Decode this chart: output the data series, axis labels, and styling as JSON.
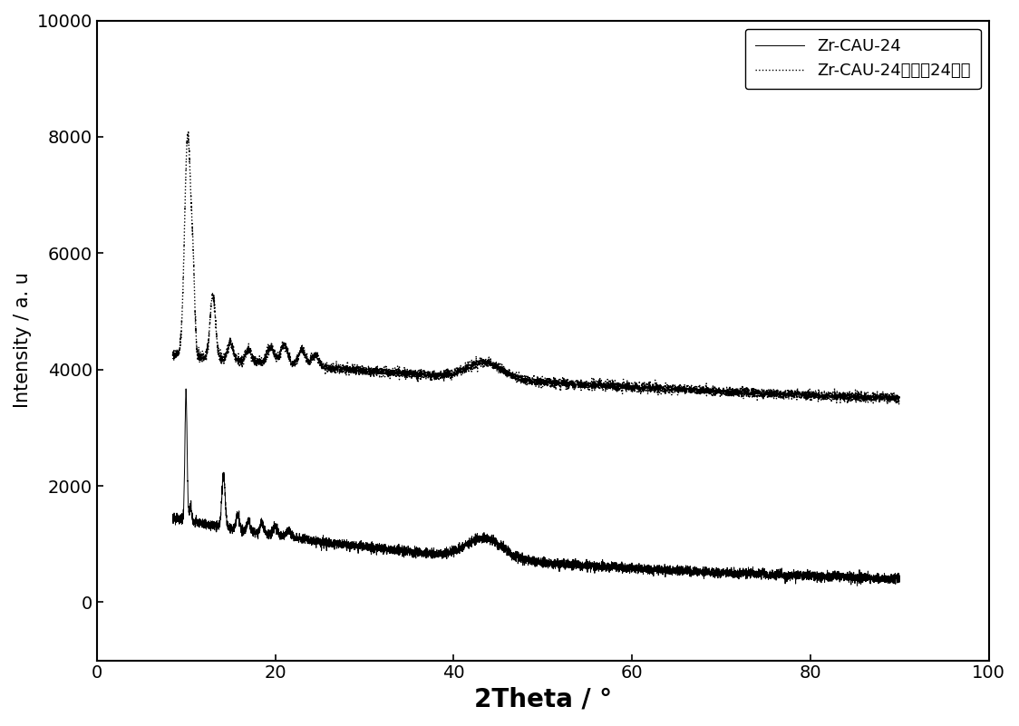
{
  "title": "",
  "xlabel": "2Theta / °",
  "ylabel": "Intensity / a. u",
  "xlim": [
    0,
    100
  ],
  "ylim": [
    -1000,
    10000
  ],
  "yticks": [
    0,
    2000,
    4000,
    6000,
    8000,
    10000
  ],
  "xticks": [
    0,
    20,
    40,
    60,
    80,
    100
  ],
  "legend1": "Zr-CAU-24",
  "legend2": "Zr-CAU-24在水中24小时",
  "background_color": "#ffffff",
  "line_color": "#000000",
  "xlabel_fontsize": 20,
  "ylabel_fontsize": 15,
  "tick_fontsize": 14,
  "legend_fontsize": 13
}
